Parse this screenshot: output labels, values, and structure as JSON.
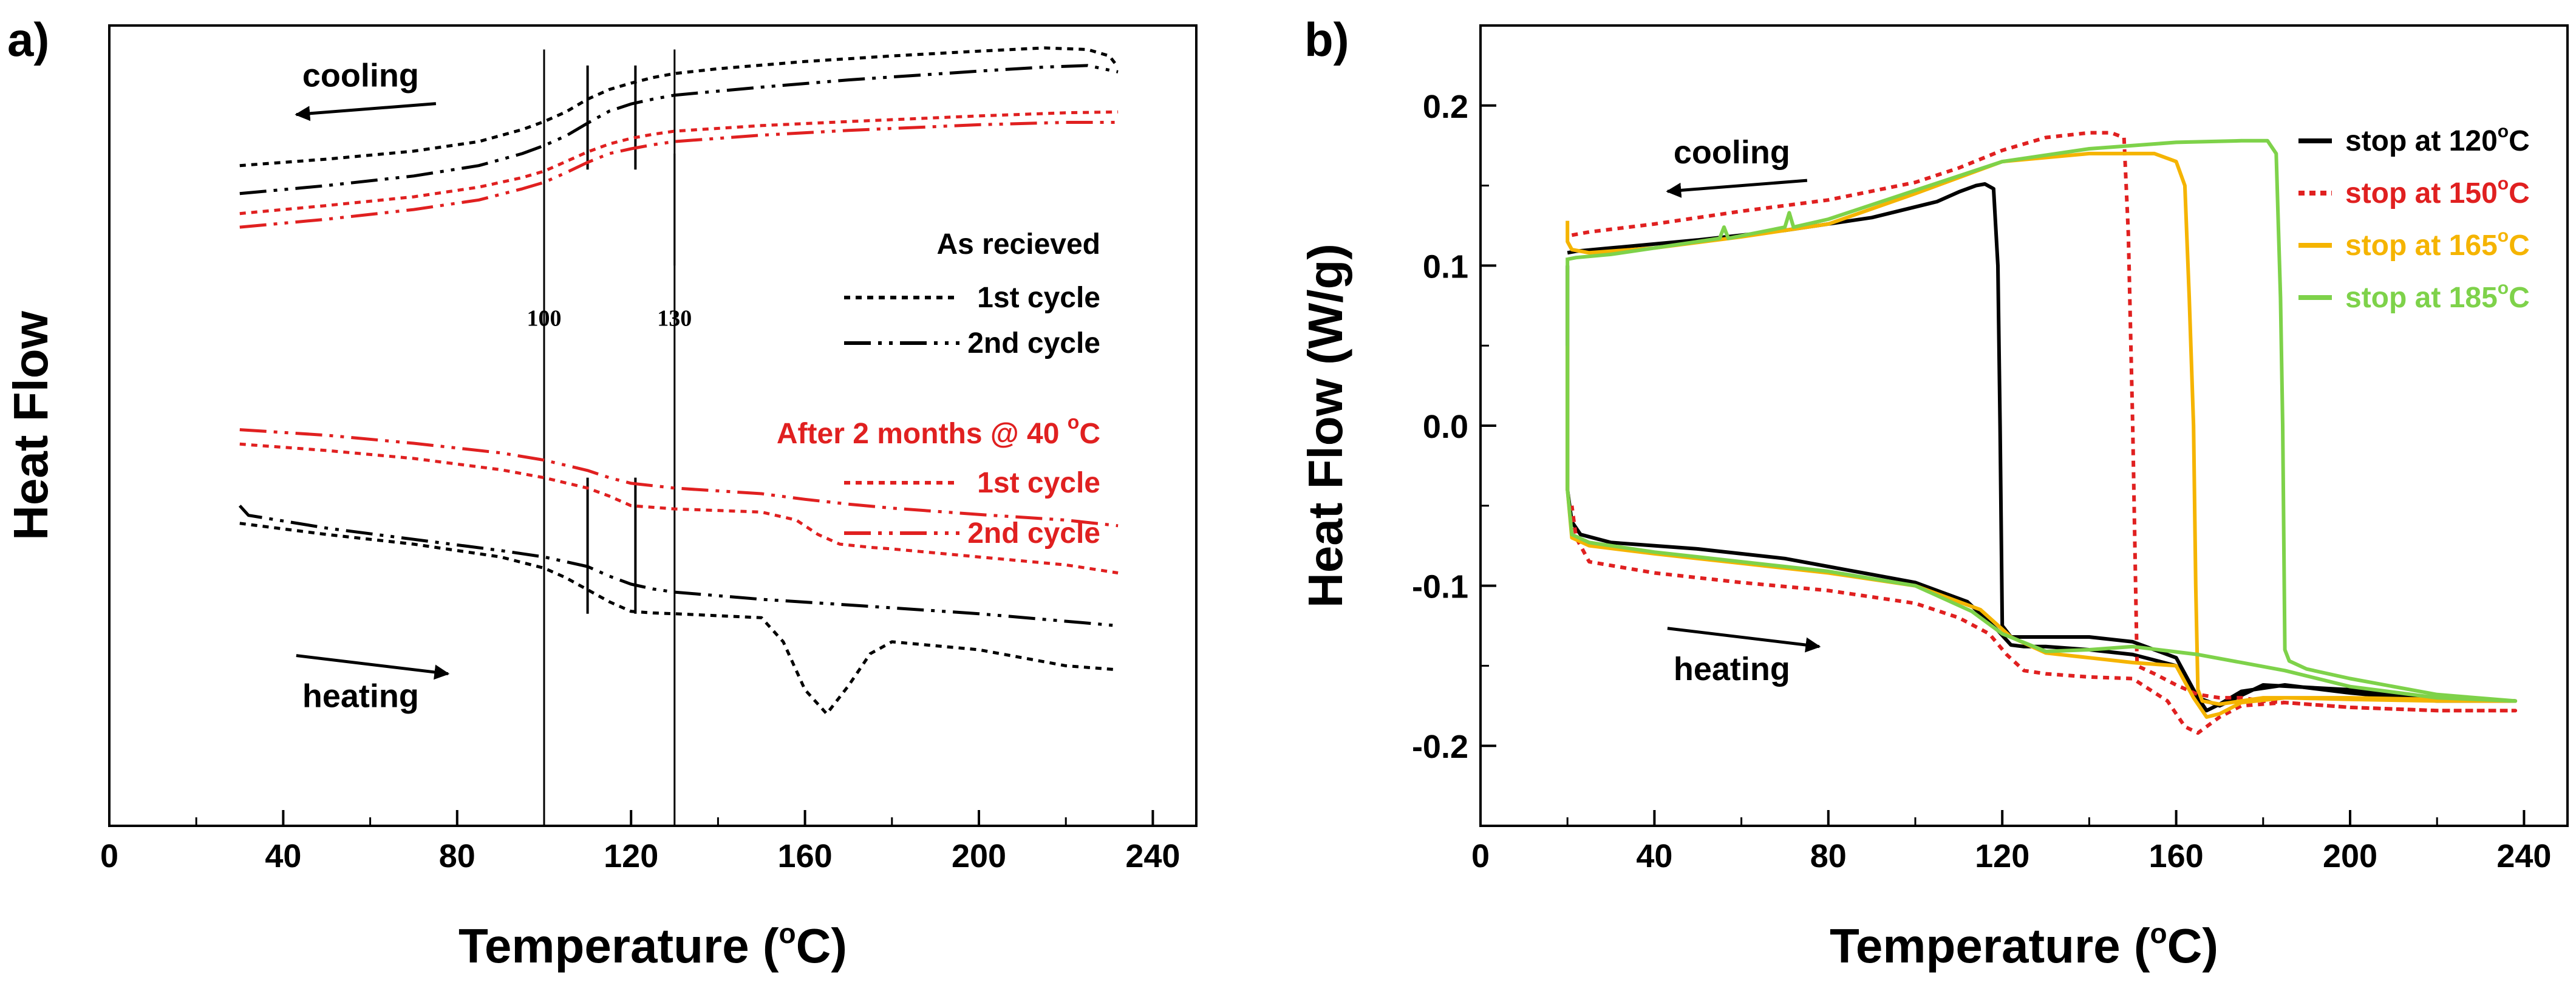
{
  "colors": {
    "black": "#000000",
    "red": "#e02020",
    "orange": "#f5b400",
    "green": "#7ed24a"
  },
  "chart_data": [
    {
      "panel": "a)",
      "type": "line",
      "xlabel": "Temperature (",
      "xlabel_sup": "o",
      "xlabel_end": "C)",
      "ylabel": "Heat Flow",
      "xlim": [
        0,
        250
      ],
      "ylim": [
        0,
        100
      ],
      "xticks": [
        0,
        40,
        80,
        120,
        160,
        200,
        240
      ],
      "xtick_labels": [
        "0",
        "40",
        "80",
        "120",
        "160",
        "200",
        "240"
      ],
      "vlines": [
        100,
        110,
        121,
        130
      ],
      "vline_labels": [
        {
          "x": 100,
          "text": "100"
        },
        {
          "x": 130,
          "text": "130"
        }
      ],
      "annotations": [
        {
          "text": "cooling",
          "x": 43,
          "y": 91,
          "arrow": "left"
        },
        {
          "text": "heating",
          "x": 43,
          "y": 19,
          "arrow": "right"
        }
      ],
      "legend_groups": [
        {
          "title": "As recieved",
          "color": "#000000",
          "entries": [
            {
              "label": "1st cycle",
              "dash": "dot"
            },
            {
              "label": "2nd cycle",
              "dash": "dashdotdot"
            }
          ]
        },
        {
          "title": "After 2 months @ 40 ",
          "title_sup": "o",
          "title_end": "C",
          "color": "#e02020",
          "entries": [
            {
              "label": "1st cycle",
              "dash": "dot"
            },
            {
              "label": "2nd cycle",
              "dash": "dashdotdot"
            }
          ]
        }
      ],
      "series": [
        {
          "name": "As recieved 1st cycle cooling",
          "color": "#000000",
          "dash": "dot",
          "x": [
            30,
            50,
            70,
            85,
            95,
            100,
            105,
            110,
            115,
            120,
            125,
            130,
            140,
            160,
            180,
            200,
            215,
            225,
            230,
            232
          ],
          "y": [
            82.5,
            83.3,
            84.3,
            85.5,
            87.0,
            88.0,
            89.2,
            90.8,
            92.0,
            92.8,
            93.5,
            94.0,
            94.6,
            95.5,
            96.2,
            96.8,
            97.2,
            97.0,
            96.2,
            94.8
          ]
        },
        {
          "name": "As recieved 2nd cycle cooling",
          "color": "#000000",
          "dash": "dashdotdot",
          "x": [
            30,
            50,
            70,
            85,
            95,
            100,
            105,
            110,
            115,
            120,
            125,
            130,
            150,
            170,
            200,
            215,
            225,
            232
          ],
          "y": [
            79.0,
            80.0,
            81.2,
            82.5,
            84.0,
            85.0,
            86.2,
            87.8,
            89.3,
            90.2,
            90.8,
            91.3,
            92.3,
            93.2,
            94.3,
            94.8,
            95.0,
            94.2
          ]
        },
        {
          "name": "After 2 months 1st cycle cooling",
          "color": "#e02020",
          "dash": "dot",
          "x": [
            30,
            50,
            70,
            85,
            95,
            100,
            105,
            110,
            115,
            120,
            125,
            130,
            150,
            170,
            200,
            220,
            232
          ],
          "y": [
            76.5,
            77.5,
            78.6,
            79.8,
            81.0,
            81.8,
            83.0,
            84.2,
            85.2,
            85.9,
            86.4,
            86.8,
            87.5,
            88.0,
            88.7,
            89.1,
            89.2
          ]
        },
        {
          "name": "After 2 months 2nd cycle cooling",
          "color": "#e02020",
          "dash": "dashdotdot",
          "x": [
            30,
            50,
            70,
            85,
            95,
            100,
            105,
            110,
            115,
            120,
            125,
            130,
            150,
            170,
            200,
            220,
            232
          ],
          "y": [
            74.8,
            75.8,
            77.0,
            78.2,
            79.6,
            80.4,
            81.6,
            82.9,
            84.0,
            84.6,
            85.1,
            85.5,
            86.3,
            86.9,
            87.6,
            87.9,
            87.9
          ]
        },
        {
          "name": "After 2 months 2nd cycle heating",
          "color": "#e02020",
          "dash": "dashdotdot",
          "x": [
            30,
            50,
            70,
            90,
            100,
            110,
            115,
            120,
            130,
            150,
            160,
            170,
            180,
            200,
            220,
            232
          ],
          "y": [
            49.5,
            48.8,
            47.8,
            46.6,
            45.7,
            44.4,
            43.5,
            42.8,
            42.2,
            41.5,
            40.8,
            40.2,
            39.7,
            38.9,
            38.2,
            37.5
          ]
        },
        {
          "name": "After 2 months 1st cycle heating",
          "color": "#e02020",
          "dash": "dot",
          "x": [
            30,
            50,
            70,
            90,
            100,
            110,
            115,
            120,
            130,
            150,
            158,
            163,
            168,
            175,
            180,
            200,
            220,
            232
          ],
          "y": [
            47.7,
            46.9,
            45.9,
            44.5,
            43.5,
            42.2,
            41.2,
            40.0,
            39.6,
            39.2,
            38.2,
            36.4,
            35.2,
            34.8,
            34.6,
            33.6,
            32.6,
            31.6
          ]
        },
        {
          "name": "As recieved 2nd cycle heating",
          "color": "#000000",
          "dash": "dashdotdot",
          "x": [
            30,
            32,
            50,
            70,
            90,
            100,
            110,
            115,
            120,
            125,
            130,
            150,
            170,
            200,
            232
          ],
          "y": [
            40.0,
            38.8,
            37.2,
            35.8,
            34.4,
            33.6,
            32.4,
            31.2,
            30.2,
            29.6,
            29.2,
            28.3,
            27.6,
            26.5,
            25.0
          ]
        },
        {
          "name": "As recieved 1st cycle heating",
          "color": "#000000",
          "dash": "dot",
          "x": [
            30,
            50,
            70,
            90,
            100,
            105,
            110,
            115,
            120,
            125,
            130,
            150,
            155,
            160,
            165,
            170,
            175,
            180,
            200,
            220,
            232
          ],
          "y": [
            37.8,
            36.4,
            35.2,
            33.6,
            32.2,
            31.0,
            29.5,
            28.0,
            26.8,
            26.6,
            26.5,
            26.0,
            23.0,
            17.0,
            14.0,
            17.5,
            21.5,
            23.0,
            22.0,
            20.0,
            19.5
          ]
        }
      ]
    },
    {
      "panel": "b)",
      "type": "line",
      "xlabel": "Temperature (",
      "xlabel_sup": "o",
      "xlabel_end": "C)",
      "ylabel": "Heat Flow (W/g)",
      "xlim": [
        0,
        250
      ],
      "ylim": [
        -0.25,
        0.25
      ],
      "xticks": [
        0,
        40,
        80,
        120,
        160,
        200,
        240
      ],
      "xtick_labels": [
        "0",
        "40",
        "80",
        "120",
        "160",
        "200",
        "240"
      ],
      "yticks": [
        -0.2,
        -0.1,
        0.0,
        0.1,
        0.2
      ],
      "ytick_labels": [
        "-0.2",
        "-0.1",
        "0.0",
        "0.1",
        "0.2"
      ],
      "annotations": [
        {
          "text": "cooling",
          "x": 43,
          "y": 0.157,
          "arrow": "left"
        },
        {
          "text": "heating",
          "x": 43,
          "y": -0.138,
          "arrow": "right"
        }
      ],
      "legend": [
        {
          "label": "stop at 120",
          "sup": "o",
          "end": "C",
          "color": "#000000",
          "dash": "solid"
        },
        {
          "label": "stop at 150",
          "sup": "o",
          "end": "C",
          "color": "#e02020",
          "dash": "dot"
        },
        {
          "label": "stop at 165",
          "sup": "o",
          "end": "C",
          "color": "#f5b400",
          "dash": "solid"
        },
        {
          "label": "stop at 185",
          "sup": "o",
          "end": "C",
          "color": "#7ed24a",
          "dash": "solid"
        }
      ],
      "series": [
        {
          "name": "stop at 120°C",
          "color": "#000000",
          "dash": "solid",
          "x": [
            20,
            22,
            30,
            50,
            70,
            90,
            105,
            110,
            114,
            116,
            118,
            119,
            119.5,
            120,
            122,
            130,
            140,
            150,
            160,
            165,
            170,
            180,
            200,
            220,
            238,
            238,
            220,
            200,
            185,
            175,
            170,
            167,
            165,
            160,
            150,
            140,
            130,
            125,
            122,
            119,
            112,
            100,
            90,
            80,
            70,
            50,
            30,
            23,
            21,
            20,
            20,
            20
          ],
          "y": [
            0.108,
            0.109,
            0.111,
            0.116,
            0.122,
            0.13,
            0.14,
            0.146,
            0.15,
            0.151,
            0.148,
            0.1,
            0.0,
            -0.125,
            -0.132,
            -0.132,
            -0.132,
            -0.135,
            -0.145,
            -0.17,
            -0.175,
            -0.162,
            -0.165,
            -0.17,
            -0.172,
            -0.172,
            -0.172,
            -0.167,
            -0.162,
            -0.166,
            -0.174,
            -0.178,
            -0.17,
            -0.15,
            -0.143,
            -0.14,
            -0.138,
            -0.138,
            -0.137,
            -0.128,
            -0.11,
            -0.098,
            -0.093,
            -0.088,
            -0.083,
            -0.077,
            -0.073,
            -0.068,
            -0.06,
            -0.04,
            0.0,
            0.1
          ]
        },
        {
          "name": "stop at 150°C",
          "color": "#e02020",
          "dash": "dot",
          "x": [
            21,
            25,
            40,
            60,
            80,
            100,
            110,
            120,
            130,
            140,
            145,
            148,
            149,
            150,
            151,
            155,
            160,
            165,
            170,
            175,
            180,
            200,
            220,
            238,
            238,
            220,
            200,
            185,
            175,
            170,
            165,
            162,
            158,
            150,
            140,
            130,
            125,
            121,
            117,
            110,
            100,
            80,
            60,
            40,
            25,
            22,
            21
          ],
          "y": [
            0.119,
            0.121,
            0.126,
            0.134,
            0.141,
            0.152,
            0.161,
            0.172,
            0.18,
            0.183,
            0.183,
            0.18,
            0.12,
            0.0,
            -0.15,
            -0.155,
            -0.162,
            -0.168,
            -0.17,
            -0.17,
            -0.172,
            -0.176,
            -0.178,
            -0.178,
            -0.178,
            -0.178,
            -0.176,
            -0.173,
            -0.175,
            -0.182,
            -0.192,
            -0.188,
            -0.172,
            -0.158,
            -0.157,
            -0.155,
            -0.153,
            -0.143,
            -0.13,
            -0.12,
            -0.111,
            -0.103,
            -0.098,
            -0.092,
            -0.085,
            -0.07,
            -0.05
          ]
        },
        {
          "name": "stop at 165°C",
          "color": "#f5b400",
          "dash": "solid",
          "x": [
            20,
            20,
            21,
            25,
            40,
            60,
            80,
            100,
            120,
            140,
            155,
            160,
            162,
            163,
            164,
            164.5,
            165,
            166,
            170,
            180,
            200,
            220,
            238,
            238,
            220,
            200,
            185,
            175,
            170,
            167,
            164,
            160,
            150,
            140,
            130,
            122,
            115,
            100,
            80,
            60,
            40,
            25,
            21,
            20,
            20
          ],
          "y": [
            0.128,
            0.115,
            0.11,
            0.108,
            0.111,
            0.118,
            0.126,
            0.145,
            0.165,
            0.17,
            0.17,
            0.165,
            0.15,
            0.08,
            0.0,
            -0.1,
            -0.165,
            -0.172,
            -0.174,
            -0.17,
            -0.17,
            -0.171,
            -0.172,
            -0.172,
            -0.172,
            -0.171,
            -0.17,
            -0.173,
            -0.18,
            -0.182,
            -0.17,
            -0.15,
            -0.148,
            -0.145,
            -0.142,
            -0.132,
            -0.115,
            -0.1,
            -0.092,
            -0.086,
            -0.08,
            -0.075,
            -0.07,
            -0.04,
            0.05
          ]
        },
        {
          "name": "stop at 185°C",
          "color": "#7ed24a",
          "dash": "solid",
          "x": [
            20,
            22,
            30,
            40,
            55,
            56,
            57,
            70,
            71,
            72,
            80,
            100,
            120,
            140,
            160,
            175,
            181,
            183,
            184,
            184.5,
            185,
            186,
            190,
            200,
            220,
            238,
            238,
            220,
            200,
            185,
            175,
            165,
            150,
            140,
            130,
            120,
            113,
            100,
            80,
            60,
            40,
            25,
            21,
            20,
            20
          ],
          "y": [
            0.104,
            0.105,
            0.107,
            0.111,
            0.117,
            0.124,
            0.117,
            0.124,
            0.133,
            0.124,
            0.129,
            0.147,
            0.165,
            0.173,
            0.177,
            0.178,
            0.178,
            0.17,
            0.08,
            0.0,
            -0.14,
            -0.147,
            -0.152,
            -0.158,
            -0.168,
            -0.172,
            -0.172,
            -0.17,
            -0.163,
            -0.153,
            -0.148,
            -0.143,
            -0.138,
            -0.14,
            -0.141,
            -0.13,
            -0.116,
            -0.1,
            -0.091,
            -0.085,
            -0.079,
            -0.073,
            -0.068,
            -0.04,
            0.105
          ]
        }
      ]
    }
  ]
}
